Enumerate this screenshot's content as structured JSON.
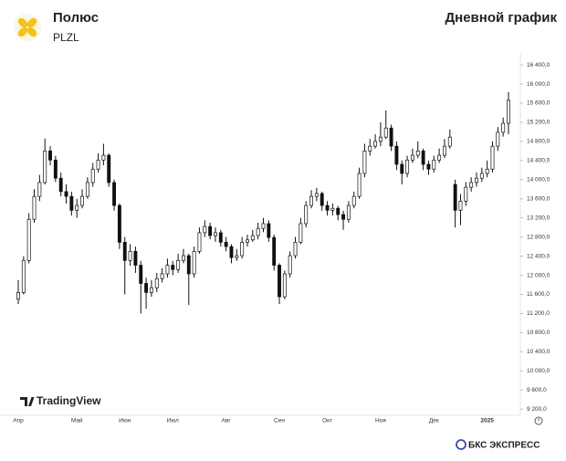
{
  "header": {
    "title": "Полюс",
    "ticker": "PLZL",
    "caption": "Дневной график"
  },
  "chart_data": {
    "type": "candlestick",
    "color": "#111111",
    "up_fill": "#ffffff",
    "watermark": "TradingView",
    "categories": [
      "Апр",
      null,
      null,
      null,
      null,
      null,
      null,
      null,
      null,
      null,
      null,
      "Май",
      null,
      null,
      null,
      null,
      null,
      null,
      null,
      null,
      "Июн",
      null,
      null,
      null,
      null,
      null,
      null,
      null,
      null,
      "Июл",
      null,
      null,
      null,
      null,
      null,
      null,
      null,
      null,
      null,
      "Авг",
      null,
      null,
      null,
      null,
      null,
      null,
      null,
      null,
      null,
      "Сен",
      null,
      null,
      null,
      null,
      null,
      null,
      null,
      null,
      "Окт",
      null,
      null,
      null,
      null,
      null,
      null,
      null,
      null,
      null,
      "Ноя",
      null,
      null,
      null,
      null,
      null,
      null,
      null,
      null,
      null,
      "Дек",
      null,
      null,
      null,
      null,
      null,
      null,
      null,
      null,
      null,
      "2025",
      null,
      null,
      null,
      null
    ],
    "open": [
      11500,
      11640,
      12310,
      13170,
      13650,
      13940,
      14600,
      14410,
      14030,
      13750,
      13650,
      13360,
      13460,
      13650,
      13940,
      14220,
      14410,
      14510,
      13940,
      13460,
      12690,
      12310,
      12500,
      12210,
      11830,
      11640,
      11740,
      11930,
      12030,
      12210,
      12120,
      12310,
      12410,
      12030,
      12500,
      12890,
      13020,
      12830,
      12890,
      12690,
      12600,
      12370,
      12410,
      12690,
      12740,
      12830,
      12980,
      13080,
      12790,
      12210,
      11550,
      12030,
      12410,
      12690,
      13080,
      13460,
      13650,
      13710,
      13460,
      13360,
      13400,
      13270,
      13170,
      13460,
      13650,
      14130,
      14600,
      14700,
      14800,
      14890,
      15080,
      14700,
      14320,
      14130,
      14410,
      14510,
      14600,
      14320,
      14220,
      14410,
      14510,
      14700,
      13900,
      13360,
      13550,
      13840,
      13940,
      14030,
      14130,
      14220,
      14700,
      14990,
      15180
    ],
    "high": [
      11900,
      12400,
      13300,
      13800,
      14100,
      14860,
      14700,
      14500,
      14150,
      13900,
      13750,
      13600,
      13800,
      14050,
      14350,
      14550,
      14750,
      14550,
      14000,
      13500,
      12800,
      12650,
      12600,
      12300,
      11950,
      11900,
      12050,
      12150,
      12350,
      12300,
      12450,
      12550,
      12450,
      12600,
      13000,
      13150,
      13100,
      13000,
      12950,
      12800,
      12650,
      12550,
      12800,
      12850,
      12950,
      13100,
      13200,
      13150,
      12850,
      12250,
      12100,
      12500,
      12800,
      13200,
      13550,
      13780,
      13830,
      13750,
      13550,
      13500,
      13450,
      13350,
      13550,
      13750,
      14250,
      14750,
      14850,
      14950,
      15200,
      15450,
      15150,
      14800,
      14400,
      14500,
      14650,
      14800,
      14650,
      14400,
      14500,
      14650,
      14850,
      15050,
      14000,
      13700,
      13950,
      14050,
      14150,
      14250,
      14400,
      14800,
      15100,
      15300,
      15830
    ],
    "low": [
      11400,
      11600,
      12250,
      13100,
      13550,
      13900,
      14300,
      13950,
      13650,
      13500,
      13250,
      13200,
      13400,
      13600,
      13850,
      14150,
      14300,
      13850,
      13350,
      12550,
      11600,
      12200,
      12050,
      11200,
      11300,
      11550,
      11650,
      11850,
      11950,
      12000,
      12050,
      12250,
      11380,
      11950,
      12450,
      12800,
      12750,
      12700,
      12600,
      12500,
      12250,
      12300,
      12350,
      12600,
      12700,
      12750,
      12900,
      12700,
      12100,
      11400,
      11500,
      11950,
      12350,
      12650,
      13000,
      13400,
      13550,
      13350,
      13250,
      13250,
      13150,
      12950,
      13100,
      13400,
      13600,
      14050,
      14500,
      14650,
      14700,
      14850,
      14600,
      14200,
      13900,
      14050,
      14350,
      14450,
      14200,
      14100,
      14150,
      14350,
      14450,
      14650,
      13000,
      13050,
      13450,
      13750,
      13850,
      13950,
      14050,
      14150,
      14600,
      14900,
      14950
    ],
    "close": [
      11640,
      12310,
      13170,
      13650,
      13940,
      14600,
      14410,
      14030,
      13750,
      13650,
      13360,
      13460,
      13650,
      13940,
      14220,
      14410,
      14510,
      13940,
      13460,
      12690,
      12310,
      12500,
      12210,
      11830,
      11640,
      11740,
      11930,
      12030,
      12210,
      12120,
      12310,
      12410,
      12030,
      12500,
      12890,
      13020,
      12830,
      12890,
      12690,
      12600,
      12370,
      12410,
      12690,
      12740,
      12830,
      12980,
      13080,
      12790,
      12210,
      11550,
      12030,
      12410,
      12690,
      13080,
      13460,
      13650,
      13710,
      13460,
      13360,
      13400,
      13270,
      13170,
      13460,
      13650,
      14130,
      14600,
      14700,
      14800,
      14890,
      15080,
      14700,
      14320,
      14130,
      14410,
      14510,
      14600,
      14320,
      14220,
      14410,
      14510,
      14700,
      14890,
      13360,
      13550,
      13840,
      13940,
      14030,
      14130,
      14220,
      14700,
      14990,
      15180,
      15660
    ],
    "ylim": [
      9070,
      16650
    ],
    "yticks": [
      {
        "value": 9200,
        "label": "9 200,0"
      },
      {
        "value": 9600,
        "label": "9 600,0"
      },
      {
        "value": 10000,
        "label": "10 000,0"
      },
      {
        "value": 10400,
        "label": "10 400,0"
      },
      {
        "value": 10800,
        "label": "10 800,0"
      },
      {
        "value": 11200,
        "label": "11 200,0"
      },
      {
        "value": 11600,
        "label": "11 600,0"
      },
      {
        "value": 12000,
        "label": "12 000,0"
      },
      {
        "value": 12400,
        "label": "12 400,0"
      },
      {
        "value": 12800,
        "label": "12 800,0"
      },
      {
        "value": 13200,
        "label": "13 200,0"
      },
      {
        "value": 13600,
        "label": "13 600,0"
      },
      {
        "value": 14000,
        "label": "14 000,0"
      },
      {
        "value": 14400,
        "label": "14 400,0"
      },
      {
        "value": 14800,
        "label": "14 800,0"
      },
      {
        "value": 15200,
        "label": "15 200,0"
      },
      {
        "value": 15600,
        "label": "15 600,0"
      },
      {
        "value": 16000,
        "label": "16 000,0"
      },
      {
        "value": 16400,
        "label": "16 400,0"
      }
    ],
    "grid": false
  },
  "footer": {
    "brand": "БКС ЭКСПРЕСС"
  }
}
